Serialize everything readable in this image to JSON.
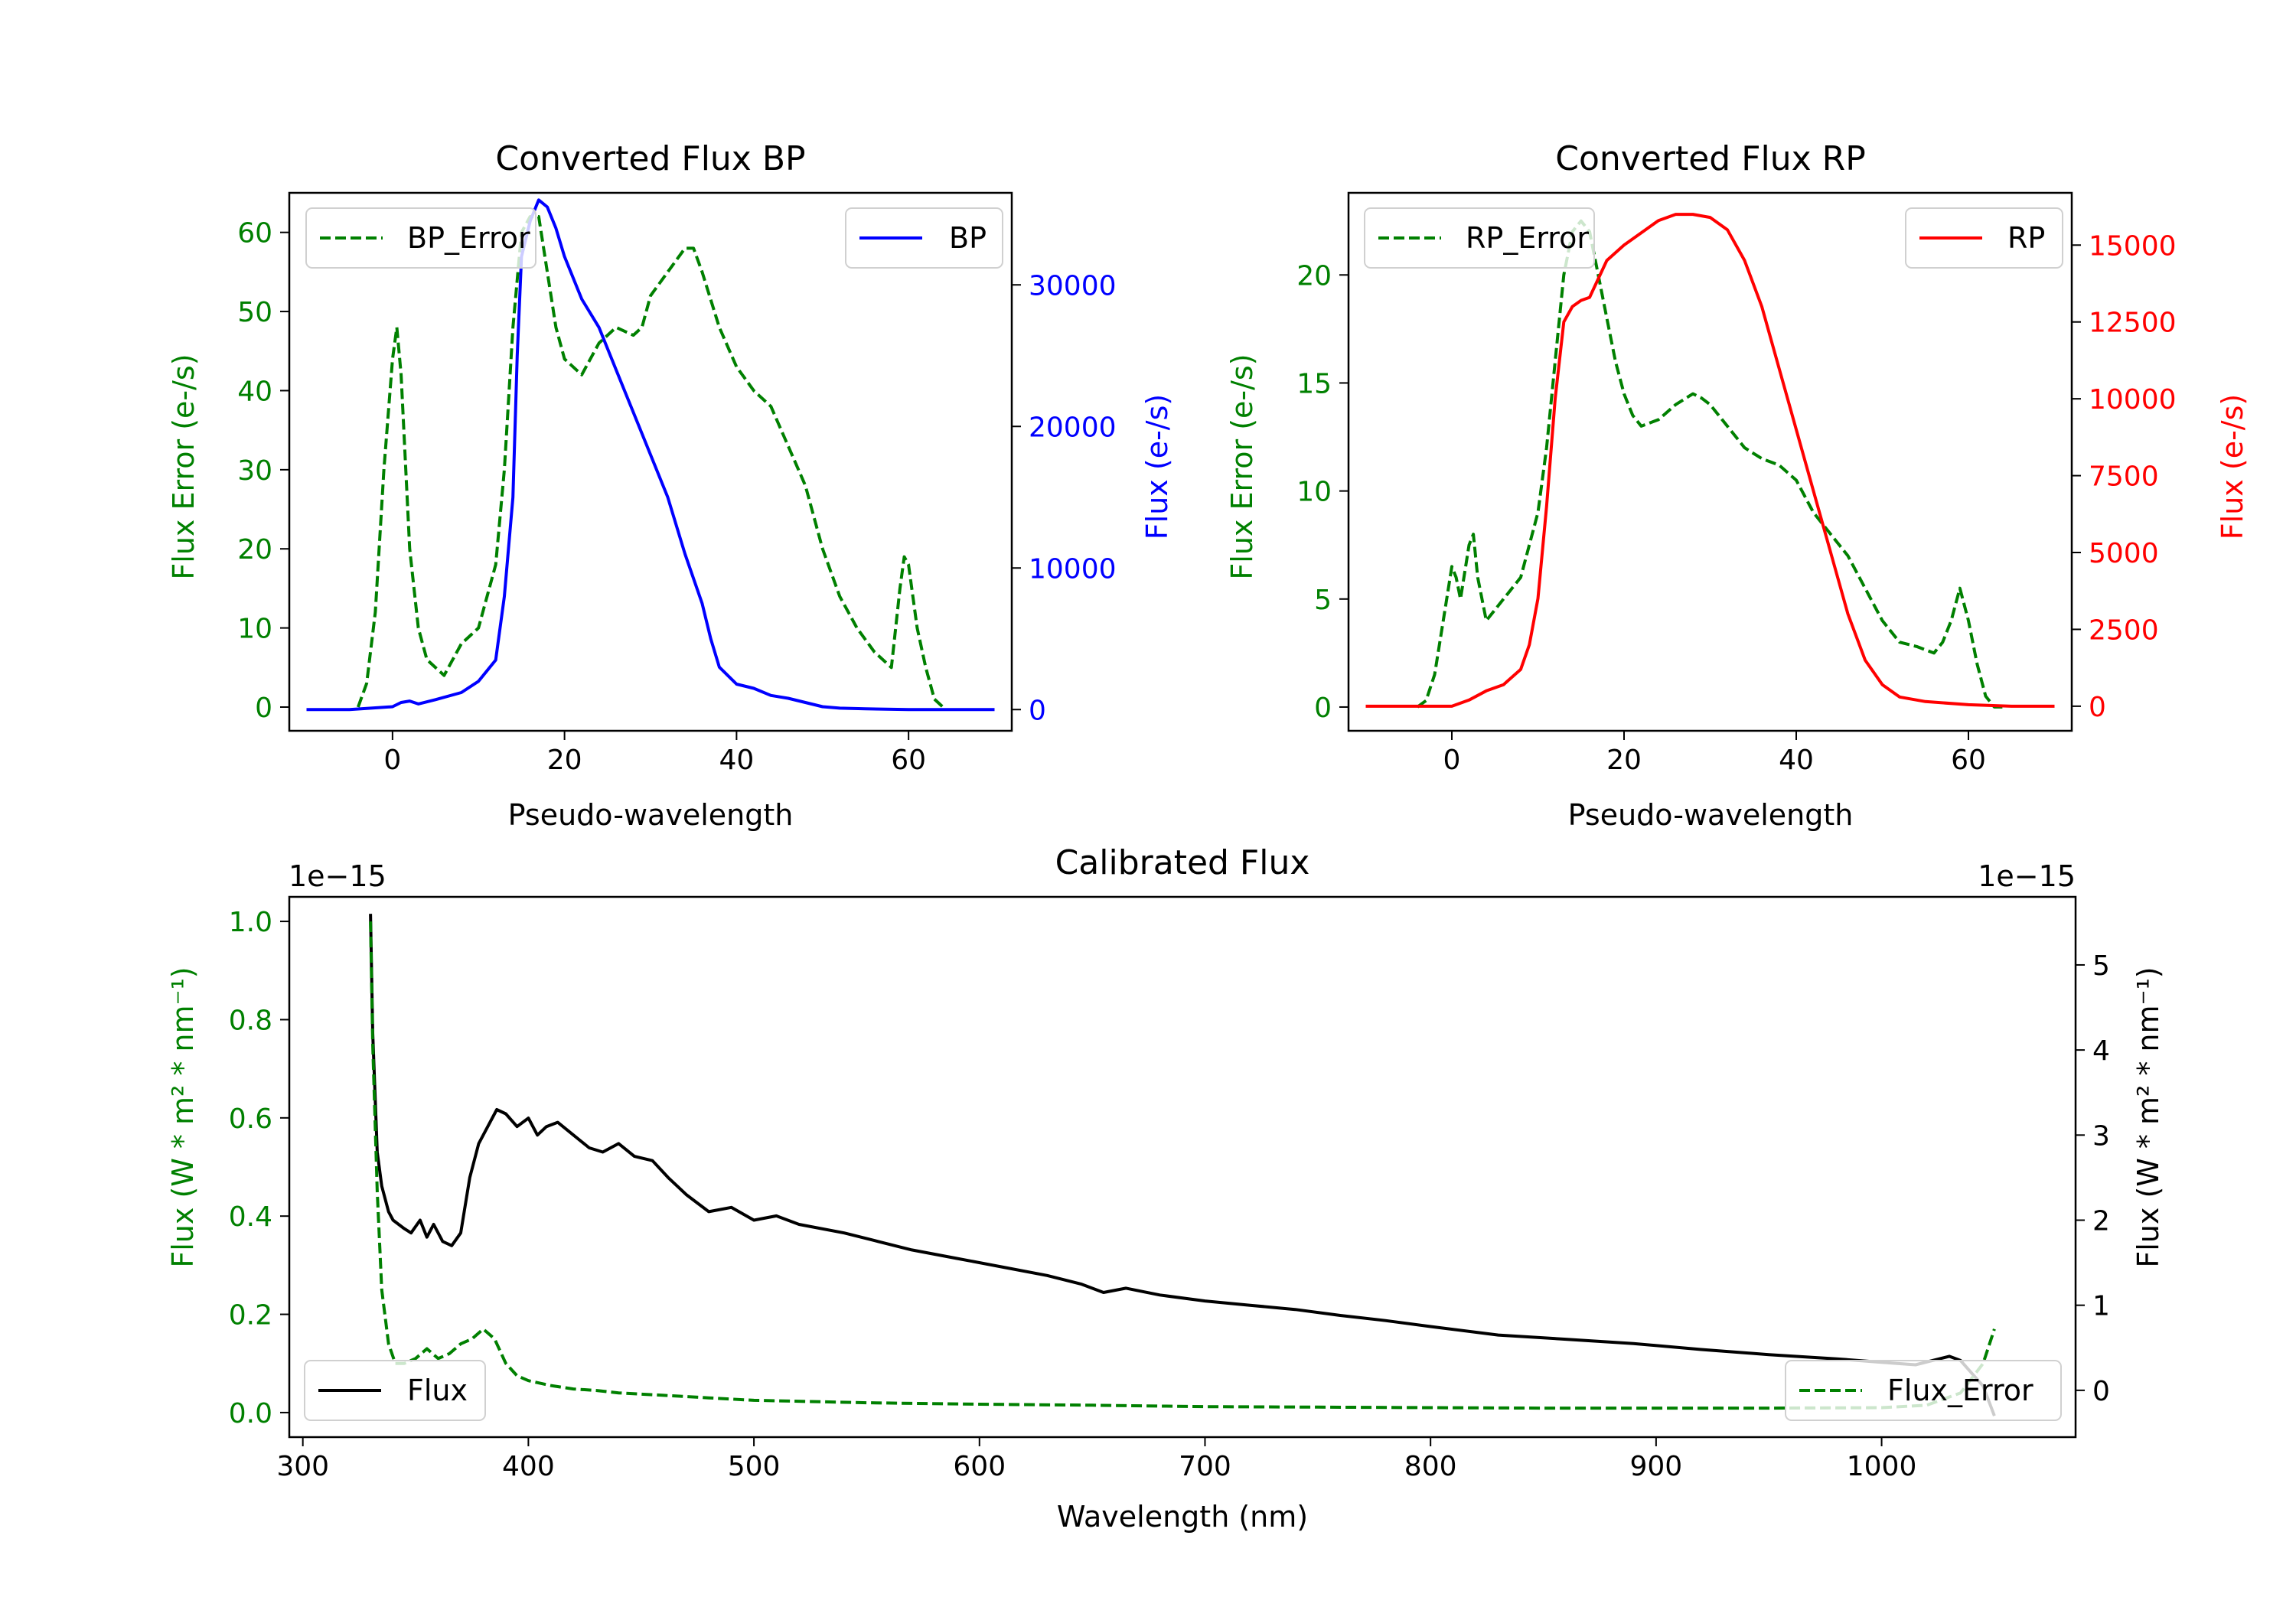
{
  "chart_data": [
    {
      "type": "line",
      "id": "bp",
      "title": "Converted Flux BP",
      "xlabel": "Pseudo-wavelength",
      "ylabel_left": "Flux Error (e-/s)",
      "ylabel_right": "Flux (e-/s)",
      "xlim": [
        -12,
        72
      ],
      "ylim_left": [
        -3,
        65
      ],
      "ylim_right": [
        -1500,
        36500
      ],
      "xticks": [
        0,
        20,
        40,
        60
      ],
      "yticks_left": [
        0,
        10,
        20,
        30,
        40,
        50,
        60
      ],
      "yticks_right": [
        0,
        10000,
        20000,
        30000
      ],
      "colors": {
        "left_axis": "#008000",
        "right_axis": "#0000ff",
        "error": "#008000",
        "flux": "#0000ff"
      },
      "series": [
        {
          "name": "BP_Error",
          "axis": "left",
          "style": "dashed",
          "legend": "top-left",
          "x": [
            -4,
            -3,
            -2,
            -1,
            0,
            0.5,
            1,
            2,
            3,
            4,
            6,
            8,
            10,
            12,
            13,
            14,
            15,
            16,
            17,
            18,
            19,
            20,
            22,
            24,
            26,
            28,
            29,
            30,
            32,
            34,
            35,
            36,
            38,
            40,
            42,
            44,
            46,
            48,
            50,
            52,
            54,
            56,
            58,
            59,
            59.5,
            60,
            61,
            62,
            63,
            64
          ],
          "y": [
            0,
            3,
            12,
            30,
            44,
            48,
            42,
            20,
            10,
            6,
            4,
            8,
            10,
            18,
            30,
            48,
            60,
            62,
            62,
            55,
            48,
            44,
            42,
            46,
            48,
            47,
            48,
            52,
            55,
            58,
            58,
            55,
            48,
            43,
            40,
            38,
            33,
            28,
            20,
            14,
            10,
            7,
            5,
            15,
            19,
            18,
            10,
            5,
            1,
            0
          ]
        },
        {
          "name": "BP",
          "axis": "right",
          "style": "solid",
          "legend": "top-right",
          "x": [
            -10,
            -5,
            0,
            1,
            2,
            3,
            5,
            8,
            10,
            12,
            13,
            14,
            14.5,
            15,
            16,
            17,
            18,
            19,
            20,
            22,
            24,
            26,
            28,
            30,
            32,
            34,
            36,
            37,
            38,
            40,
            42,
            44,
            46,
            48,
            50,
            52,
            55,
            60,
            65,
            70
          ],
          "y": [
            0,
            0,
            200,
            500,
            600,
            400,
            700,
            1200,
            2000,
            3500,
            8000,
            15000,
            25000,
            32000,
            34500,
            36000,
            35500,
            34000,
            32000,
            29000,
            27000,
            24000,
            21000,
            18000,
            15000,
            11000,
            7500,
            5000,
            3000,
            1800,
            1500,
            1000,
            800,
            500,
            200,
            100,
            50,
            0,
            0,
            0
          ]
        }
      ]
    },
    {
      "type": "line",
      "id": "rp",
      "title": "Converted Flux RP",
      "xlabel": "Pseudo-wavelength",
      "ylabel_left": "Flux Error (e-/s)",
      "ylabel_right": "Flux (e-/s)",
      "xlim": [
        -12,
        72
      ],
      "ylim_left": [
        -1.1,
        23.8
      ],
      "ylim_right": [
        -800,
        16700
      ],
      "xticks": [
        0,
        20,
        40,
        60
      ],
      "yticks_left": [
        0,
        5,
        10,
        15,
        20
      ],
      "yticks_right": [
        0,
        2500,
        5000,
        7500,
        10000,
        12500,
        15000
      ],
      "colors": {
        "left_axis": "#008000",
        "right_axis": "#ff0000",
        "error": "#008000",
        "flux": "#ff0000"
      },
      "series": [
        {
          "name": "RP_Error",
          "axis": "left",
          "style": "dashed",
          "legend": "top-left",
          "x": [
            -4,
            -3,
            -2,
            -1,
            0,
            0.5,
            1,
            2,
            2.5,
            3,
            4,
            5,
            6,
            8,
            10,
            11,
            12,
            13,
            14,
            15,
            16,
            17,
            18,
            19,
            20,
            21,
            22,
            24,
            26,
            28,
            29,
            30,
            32,
            34,
            36,
            38,
            40,
            42,
            44,
            46,
            48,
            50,
            52,
            54,
            56,
            57,
            58,
            59,
            60,
            61,
            62,
            63,
            64
          ],
          "y": [
            0,
            0.3,
            1.5,
            4,
            6.5,
            6,
            5,
            7.5,
            8,
            6,
            4,
            4.5,
            5,
            6,
            9,
            12,
            16,
            20,
            22,
            22.5,
            22,
            20,
            18,
            16,
            14.5,
            13.5,
            13,
            13.3,
            14,
            14.5,
            14.3,
            14,
            13,
            12,
            11.5,
            11.2,
            10.5,
            9,
            8,
            7,
            5.5,
            4,
            3,
            2.8,
            2.5,
            3,
            4,
            5.5,
            4,
            2,
            0.5,
            0,
            0
          ]
        },
        {
          "name": "RP",
          "axis": "right",
          "style": "solid",
          "legend": "top-right",
          "x": [
            -10,
            -5,
            0,
            2,
            4,
            6,
            8,
            9,
            10,
            11,
            12,
            13,
            14,
            15,
            16,
            18,
            20,
            22,
            24,
            26,
            28,
            30,
            32,
            34,
            36,
            38,
            40,
            42,
            44,
            46,
            48,
            50,
            52,
            55,
            60,
            65,
            70
          ],
          "y": [
            0,
            0,
            0,
            200,
            500,
            700,
            1200,
            2000,
            3500,
            6500,
            10000,
            12500,
            13000,
            13200,
            13300,
            14500,
            15000,
            15400,
            15800,
            16000,
            16000,
            15900,
            15500,
            14500,
            13000,
            11000,
            9000,
            7000,
            5000,
            3000,
            1500,
            700,
            300,
            150,
            50,
            0,
            0
          ]
        }
      ]
    },
    {
      "type": "line",
      "id": "calibrated",
      "title": "Calibrated Flux",
      "xlabel": "Wavelength (nm)",
      "ylabel_left": "Flux (W * m² * nm⁻¹)",
      "ylabel_right": "Flux (W * m² * nm⁻¹)",
      "offset_left": "1e−15",
      "offset_right": "1e−15",
      "xlim": [
        294,
        1086
      ],
      "ylim_left": [
        -0.05,
        1.05
      ],
      "ylim_right": [
        -0.55,
        5.8
      ],
      "xticks": [
        300,
        400,
        500,
        600,
        700,
        800,
        900,
        1000
      ],
      "yticks_left": [
        0.0,
        0.2,
        0.4,
        0.6,
        0.8,
        1.0
      ],
      "yticks_right": [
        0,
        1,
        2,
        3,
        4,
        5
      ],
      "colors": {
        "left_axis": "#008000",
        "right_axis": "#000000",
        "error": "#008000",
        "flux": "#000000"
      },
      "series": [
        {
          "name": "Flux",
          "axis": "right",
          "style": "solid",
          "legend": "bottom-left",
          "x": [
            330,
            331,
            333,
            335,
            338,
            340,
            345,
            348,
            352,
            355,
            358,
            362,
            366,
            370,
            374,
            378,
            382,
            386,
            390,
            395,
            400,
            404,
            408,
            413,
            420,
            427,
            433,
            440,
            447,
            455,
            462,
            470,
            480,
            490,
            500,
            510,
            520,
            540,
            555,
            570,
            590,
            610,
            630,
            645,
            655,
            665,
            680,
            700,
            720,
            740,
            760,
            780,
            800,
            830,
            860,
            890,
            920,
            950,
            980,
            1000,
            1015,
            1030,
            1035,
            1040,
            1045,
            1050
          ],
          "y": [
            5.6,
            4.2,
            2.8,
            2.4,
            2.1,
            2.0,
            1.9,
            1.85,
            2.0,
            1.8,
            1.95,
            1.75,
            1.7,
            1.85,
            2.5,
            2.9,
            3.1,
            3.3,
            3.25,
            3.1,
            3.2,
            3.0,
            3.1,
            3.15,
            3.0,
            2.85,
            2.8,
            2.9,
            2.75,
            2.7,
            2.5,
            2.3,
            2.1,
            2.15,
            2.0,
            2.05,
            1.95,
            1.85,
            1.75,
            1.65,
            1.55,
            1.45,
            1.35,
            1.25,
            1.15,
            1.2,
            1.12,
            1.05,
            1.0,
            0.95,
            0.88,
            0.82,
            0.75,
            0.65,
            0.6,
            0.55,
            0.48,
            0.42,
            0.37,
            0.33,
            0.3,
            0.4,
            0.35,
            0.2,
            0.05,
            -0.3
          ]
        },
        {
          "name": "Flux_Error",
          "axis": "left",
          "style": "dashed",
          "legend": "bottom-right",
          "x": [
            330,
            331,
            333,
            335,
            338,
            341,
            345,
            350,
            355,
            360,
            365,
            370,
            375,
            380,
            385,
            390,
            395,
            400,
            410,
            420,
            430,
            440,
            460,
            480,
            500,
            550,
            600,
            650,
            700,
            750,
            800,
            850,
            900,
            950,
            1000,
            1020,
            1035,
            1045,
            1050
          ],
          "y": [
            1.0,
            0.75,
            0.45,
            0.25,
            0.14,
            0.1,
            0.1,
            0.11,
            0.13,
            0.11,
            0.12,
            0.14,
            0.15,
            0.17,
            0.15,
            0.1,
            0.075,
            0.065,
            0.055,
            0.048,
            0.045,
            0.04,
            0.035,
            0.03,
            0.025,
            0.02,
            0.017,
            0.015,
            0.012,
            0.011,
            0.01,
            0.009,
            0.009,
            0.009,
            0.01,
            0.015,
            0.04,
            0.1,
            0.17
          ]
        }
      ]
    }
  ]
}
